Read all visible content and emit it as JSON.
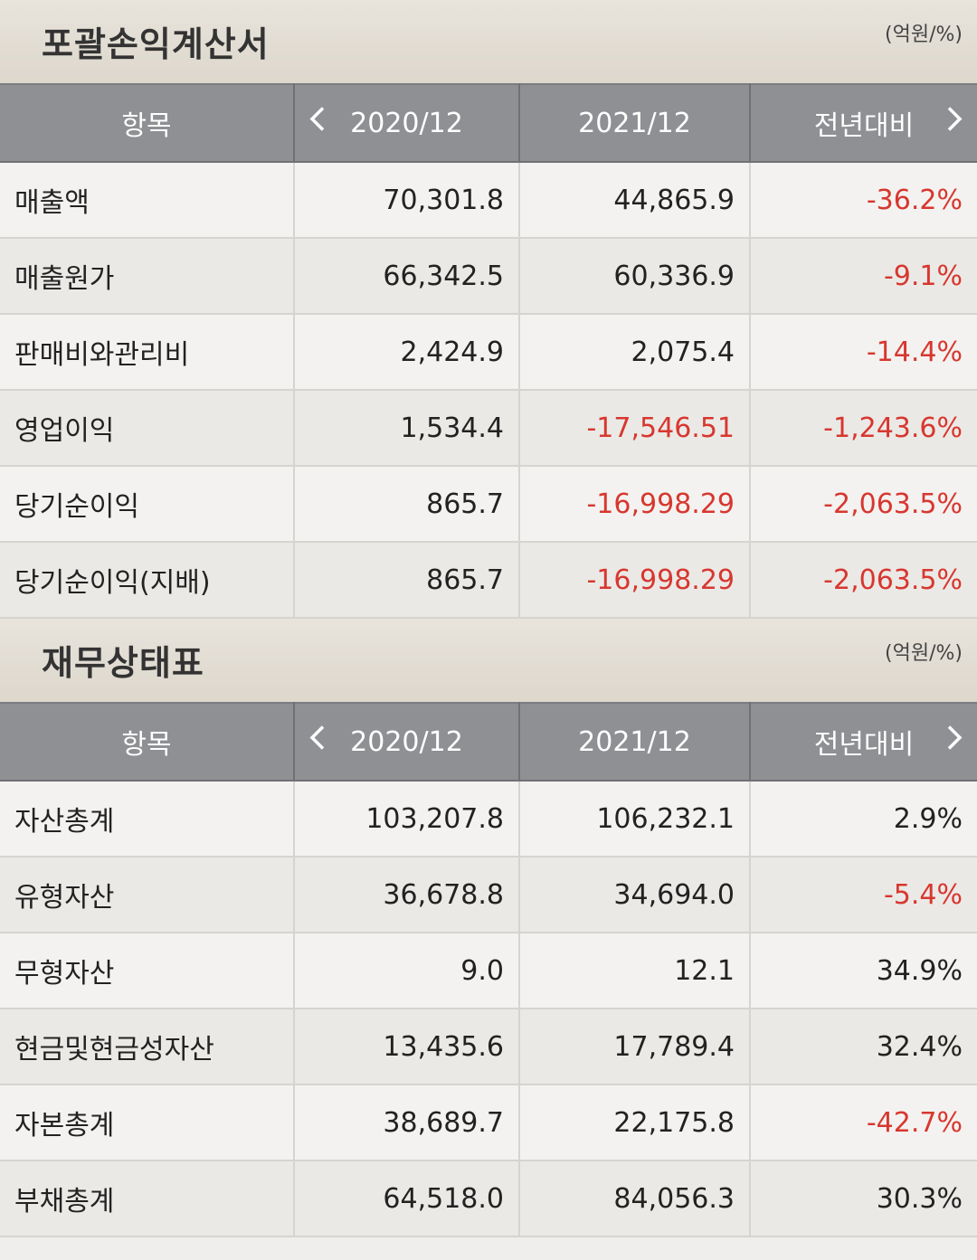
{
  "sections": [
    {
      "title": "포괄손익계산서",
      "unit": "(억원/%)",
      "headers": [
        "항목",
        "2020/12",
        "2021/12",
        "전년대비"
      ],
      "rows": [
        {
          "label": "매출액",
          "v2020": "70,301.8",
          "v2021": "44,865.9",
          "yoy": "-36.2%",
          "v2021_neg": false,
          "yoy_neg": true
        },
        {
          "label": "매출원가",
          "v2020": "66,342.5",
          "v2021": "60,336.9",
          "yoy": "-9.1%",
          "v2021_neg": false,
          "yoy_neg": true
        },
        {
          "label": "판매비와관리비",
          "v2020": "2,424.9",
          "v2021": "2,075.4",
          "yoy": "-14.4%",
          "v2021_neg": false,
          "yoy_neg": true
        },
        {
          "label": "영업이익",
          "v2020": "1,534.4",
          "v2021": "-17,546.51",
          "yoy": "-1,243.6%",
          "v2021_neg": true,
          "yoy_neg": true
        },
        {
          "label": "당기순이익",
          "v2020": "865.7",
          "v2021": "-16,998.29",
          "yoy": "-2,063.5%",
          "v2021_neg": true,
          "yoy_neg": true
        },
        {
          "label": "당기순이익(지배)",
          "v2020": "865.7",
          "v2021": "-16,998.29",
          "yoy": "-2,063.5%",
          "v2021_neg": true,
          "yoy_neg": true
        }
      ]
    },
    {
      "title": "재무상태표",
      "unit": "(억원/%)",
      "headers": [
        "항목",
        "2020/12",
        "2021/12",
        "전년대비"
      ],
      "rows": [
        {
          "label": "자산총계",
          "v2020": "103,207.8",
          "v2021": "106,232.1",
          "yoy": "2.9%",
          "v2021_neg": false,
          "yoy_neg": false
        },
        {
          "label": "유형자산",
          "v2020": "36,678.8",
          "v2021": "34,694.0",
          "yoy": "-5.4%",
          "v2021_neg": false,
          "yoy_neg": true
        },
        {
          "label": "무형자산",
          "v2020": "9.0",
          "v2021": "12.1",
          "yoy": "34.9%",
          "v2021_neg": false,
          "yoy_neg": false
        },
        {
          "label": "현금및현금성자산",
          "v2020": "13,435.6",
          "v2021": "17,789.4",
          "yoy": "32.4%",
          "v2021_neg": false,
          "yoy_neg": false
        },
        {
          "label": "자본총계",
          "v2020": "38,689.7",
          "v2021": "22,175.8",
          "yoy": "-42.7%",
          "v2021_neg": false,
          "yoy_neg": true
        },
        {
          "label": "부채총계",
          "v2020": "64,518.0",
          "v2021": "84,056.3",
          "yoy": "30.3%",
          "v2021_neg": false,
          "yoy_neg": false
        }
      ]
    }
  ],
  "icons": {
    "prev": "chevron-left-icon",
    "next": "chevron-right-icon"
  },
  "colors": {
    "negative": "#d7372f",
    "header_bg": "#8e9093"
  }
}
